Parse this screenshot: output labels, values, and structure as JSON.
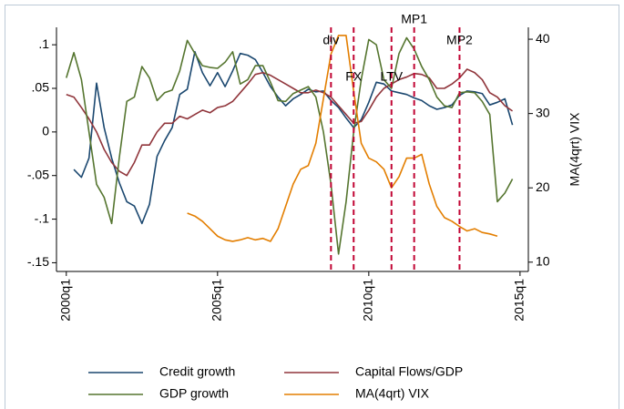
{
  "chart_data": {
    "type": "line",
    "x": [
      160,
      161,
      162,
      163,
      164,
      165,
      166,
      167,
      168,
      169,
      170,
      171,
      172,
      173,
      174,
      175,
      176,
      177,
      178,
      179,
      180,
      181,
      182,
      183,
      184,
      185,
      186,
      187,
      188,
      189,
      190,
      191,
      192,
      193,
      194,
      195,
      196,
      197,
      198,
      199,
      200,
      201,
      202,
      203,
      204,
      205,
      206,
      207,
      208,
      209,
      210,
      211,
      212,
      213,
      214,
      215,
      216,
      217,
      218,
      219
    ],
    "xlim": [
      158.7,
      221.1
    ],
    "xticks": [
      {
        "value": 160,
        "label": "2000q1"
      },
      {
        "value": 180,
        "label": "2005q1"
      },
      {
        "value": 200,
        "label": "2010q1"
      },
      {
        "value": 220,
        "label": "2015q1"
      }
    ],
    "ylim": [
      -0.16,
      0.12
    ],
    "yticks": [
      {
        "value": 0.1,
        "label": ".1"
      },
      {
        "value": 0.05,
        "label": ".05"
      },
      0,
      {
        "value": -0.05,
        "label": "-.05"
      },
      {
        "value": -0.1,
        "label": "-.1"
      },
      {
        "value": -0.15,
        "label": "-.15"
      }
    ],
    "y2lim": [
      8.75,
      41.6
    ],
    "y2ticks": [
      10,
      20,
      30,
      40
    ],
    "y2label": "MA(4qrt) VIX",
    "series": [
      {
        "name": "Credit growth",
        "color": "#1a476f",
        "values": [
          null,
          -0.043,
          -0.052,
          -0.03,
          0.056,
          0.005,
          -0.03,
          -0.058,
          -0.08,
          -0.085,
          -0.105,
          -0.083,
          -0.028,
          -0.01,
          0.005,
          0.043,
          0.049,
          0.092,
          0.068,
          0.053,
          0.068,
          0.052,
          0.07,
          0.09,
          0.088,
          0.083,
          0.068,
          0.052,
          0.04,
          0.03,
          0.038,
          0.043,
          0.049,
          0.046,
          0.047,
          0.036,
          0.028,
          0.016,
          0.005,
          0.014,
          0.034,
          0.057,
          0.055,
          0.047,
          0.045,
          0.043,
          0.039,
          0.036,
          0.03,
          0.026,
          0.028,
          0.031,
          0.042,
          0.047,
          0.046,
          0.044,
          0.031,
          0.034,
          0.038,
          0.008
        ]
      },
      {
        "name": "Capital Flows/GDP",
        "color": "#90353b",
        "values": [
          0.043,
          0.04,
          0.028,
          0.015,
          0.0,
          -0.02,
          -0.035,
          -0.045,
          -0.05,
          -0.035,
          -0.015,
          -0.015,
          0.0,
          0.01,
          0.01,
          0.018,
          0.015,
          0.02,
          0.025,
          0.022,
          0.028,
          0.03,
          0.035,
          0.045,
          0.055,
          0.066,
          0.068,
          0.065,
          0.06,
          0.055,
          0.05,
          0.045,
          0.045,
          0.048,
          0.045,
          0.04,
          0.03,
          0.02,
          0.01,
          0.012,
          0.025,
          0.04,
          0.05,
          0.055,
          0.06,
          0.063,
          0.067,
          0.066,
          0.062,
          0.05,
          0.05,
          0.055,
          0.062,
          0.072,
          0.068,
          0.06,
          0.045,
          0.04,
          0.03,
          0.024
        ]
      },
      {
        "name": "GDP growth",
        "color": "#55752f",
        "values": [
          0.062,
          0.091,
          0.06,
          0.0,
          -0.06,
          -0.075,
          -0.105,
          -0.03,
          0.035,
          0.04,
          0.075,
          0.062,
          0.036,
          0.045,
          0.048,
          0.07,
          0.105,
          0.09,
          0.076,
          0.074,
          0.073,
          0.08,
          0.092,
          0.055,
          0.06,
          0.076,
          0.076,
          0.057,
          0.036,
          0.035,
          0.044,
          0.048,
          0.052,
          0.04,
          0.0,
          -0.06,
          -0.14,
          -0.08,
          0.0,
          0.06,
          0.106,
          0.1,
          0.06,
          0.05,
          0.09,
          0.108,
          0.095,
          0.075,
          0.06,
          0.04,
          0.03,
          0.028,
          0.045,
          0.046,
          0.045,
          0.035,
          0.02,
          -0.08,
          -0.07,
          -0.054
        ]
      },
      {
        "name": "MA(4qrt) VIX",
        "color": "#e37e00",
        "axis": "y2",
        "values": [
          null,
          null,
          null,
          null,
          null,
          null,
          null,
          null,
          null,
          null,
          null,
          null,
          null,
          null,
          null,
          null,
          16.6,
          16.2,
          15.5,
          14.5,
          13.5,
          13.0,
          12.8,
          13.0,
          13.3,
          13.0,
          13.2,
          12.8,
          14.5,
          17.5,
          20.5,
          22.5,
          23.0,
          26.0,
          32.0,
          38.0,
          40.5,
          40.5,
          33.0,
          26.0,
          24.0,
          23.5,
          22.5,
          20.0,
          21.5,
          24.0,
          24.0,
          24.5,
          20.5,
          17.5,
          16.0,
          15.5,
          14.8,
          14.2,
          14.5,
          14.0,
          13.8,
          13.5,
          null,
          null
        ]
      }
    ],
    "annotations": [
      {
        "label": "div",
        "x": 195
      },
      {
        "label": "FX",
        "x": 198
      },
      {
        "label": "LTV",
        "x": 203
      },
      {
        "label": "MP1",
        "x": 206
      },
      {
        "label": "MP2",
        "x": 212
      }
    ],
    "annotation_color": "#c10534"
  }
}
